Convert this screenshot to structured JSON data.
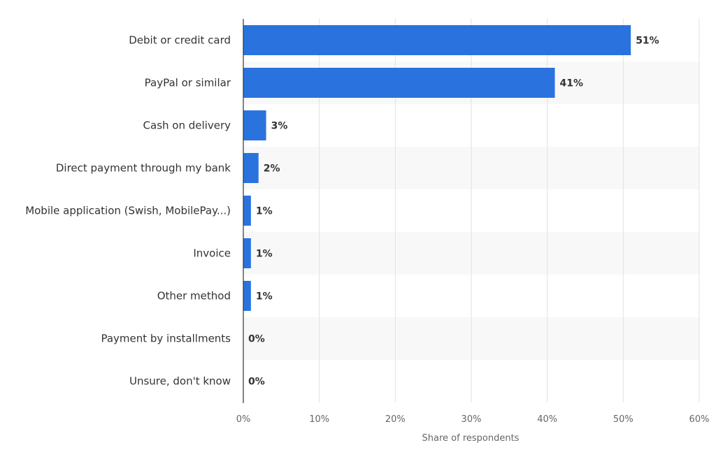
{
  "chart_data": {
    "type": "bar",
    "orientation": "horizontal",
    "categories": [
      "Debit or credit card",
      "PayPal or similar",
      "Cash on delivery",
      "Direct payment through my bank",
      "Mobile application (Swish, MobilePay...)",
      "Invoice",
      "Other method",
      "Payment by installments",
      "Unsure, don't know"
    ],
    "values": [
      51,
      41,
      3,
      2,
      1,
      1,
      1,
      0,
      0
    ],
    "value_labels": [
      "51%",
      "41%",
      "3%",
      "2%",
      "1%",
      "1%",
      "1%",
      "0%",
      "0%"
    ],
    "xlabel": "Share of respondents",
    "ylabel": "",
    "xlim": [
      0,
      60
    ],
    "xticks": [
      0,
      10,
      20,
      30,
      40,
      50,
      60
    ],
    "xtick_labels": [
      "0%",
      "10%",
      "20%",
      "30%",
      "40%",
      "50%",
      "60%"
    ],
    "grid": "vertical",
    "bar_color": "#2a73de",
    "band_color": "#f8f8f8",
    "legend": "none"
  }
}
